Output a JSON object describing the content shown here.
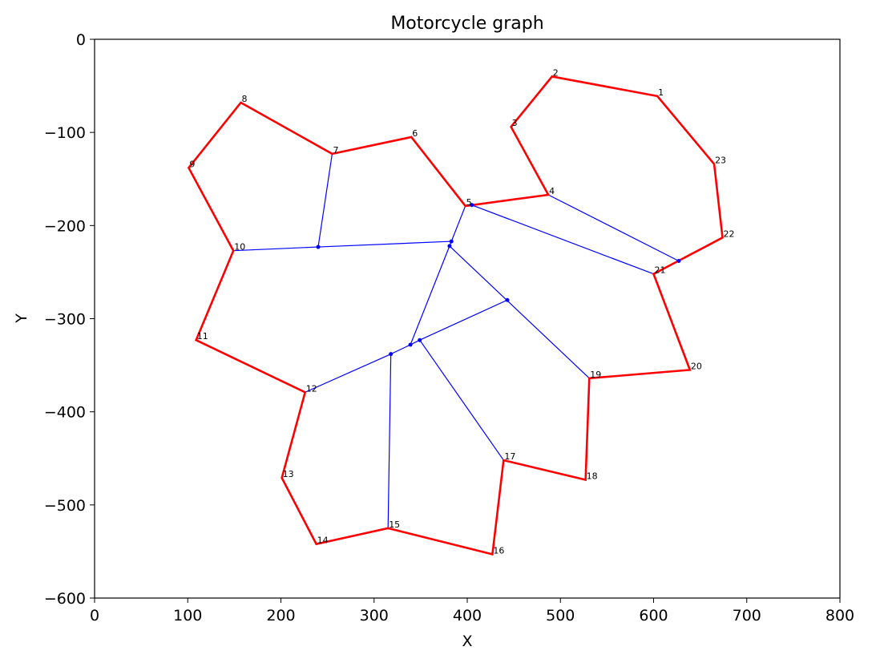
{
  "chart_data": {
    "type": "line",
    "title": "Motorcycle graph",
    "xlabel": "X",
    "ylabel": "Y",
    "xlim": [
      0,
      800
    ],
    "ylim": [
      -600,
      0
    ],
    "xticks": [
      0,
      100,
      200,
      300,
      400,
      500,
      600,
      700,
      800
    ],
    "yticks": [
      0,
      -100,
      -200,
      -300,
      -400,
      -500,
      -600
    ],
    "grid": false,
    "polygon_color": "#ff0000",
    "motorcycle_color": "#0000ff",
    "vertices": [
      {
        "label": "1",
        "x": 604,
        "y": -61
      },
      {
        "label": "2",
        "x": 491,
        "y": -40
      },
      {
        "label": "3",
        "x": 447,
        "y": -94
      },
      {
        "label": "4",
        "x": 487,
        "y": -167
      },
      {
        "label": "5",
        "x": 398,
        "y": -179
      },
      {
        "label": "6",
        "x": 340,
        "y": -105
      },
      {
        "label": "7",
        "x": 255,
        "y": -123
      },
      {
        "label": "8",
        "x": 157,
        "y": -68
      },
      {
        "label": "9",
        "x": 101,
        "y": -138
      },
      {
        "label": "10",
        "x": 149,
        "y": -227
      },
      {
        "label": "11",
        "x": 109,
        "y": -323
      },
      {
        "label": "12",
        "x": 226,
        "y": -379
      },
      {
        "label": "13",
        "x": 201,
        "y": -471
      },
      {
        "label": "14",
        "x": 238,
        "y": -542
      },
      {
        "label": "15",
        "x": 315,
        "y": -525
      },
      {
        "label": "16",
        "x": 427,
        "y": -553
      },
      {
        "label": "17",
        "x": 439,
        "y": -452
      },
      {
        "label": "18",
        "x": 527,
        "y": -473
      },
      {
        "label": "19",
        "x": 531,
        "y": -364
      },
      {
        "label": "20",
        "x": 639,
        "y": -355
      },
      {
        "label": "21",
        "x": 600,
        "y": -252
      },
      {
        "label": "22",
        "x": 674,
        "y": -213
      },
      {
        "label": "23",
        "x": 665,
        "y": -134
      }
    ],
    "motorcycle_points": [
      {
        "x": 405,
        "y": -178
      },
      {
        "x": 240,
        "y": -223
      },
      {
        "x": 383,
        "y": -217
      },
      {
        "x": 381,
        "y": -222
      },
      {
        "x": 627,
        "y": -238
      },
      {
        "x": 443,
        "y": -280
      },
      {
        "x": 318,
        "y": -338
      },
      {
        "x": 339,
        "y": -328
      },
      {
        "x": 349,
        "y": -323
      }
    ],
    "motorcycle_edges": [
      [
        [
          255,
          -123
        ],
        [
          240,
          -223
        ]
      ],
      [
        [
          149,
          -227
        ],
        [
          240,
          -223
        ]
      ],
      [
        [
          240,
          -223
        ],
        [
          383,
          -217
        ]
      ],
      [
        [
          398,
          -179
        ],
        [
          381,
          -222
        ]
      ],
      [
        [
          381,
          -222
        ],
        [
          339,
          -328
        ]
      ],
      [
        [
          381,
          -222
        ],
        [
          531,
          -364
        ]
      ],
      [
        [
          405,
          -178
        ],
        [
          600,
          -252
        ]
      ],
      [
        [
          487,
          -167
        ],
        [
          627,
          -238
        ]
      ],
      [
        [
          226,
          -379
        ],
        [
          318,
          -338
        ]
      ],
      [
        [
          318,
          -338
        ],
        [
          339,
          -328
        ]
      ],
      [
        [
          339,
          -328
        ],
        [
          349,
          -323
        ]
      ],
      [
        [
          349,
          -323
        ],
        [
          443,
          -280
        ]
      ],
      [
        [
          349,
          -323
        ],
        [
          439,
          -452
        ]
      ],
      [
        [
          318,
          -338
        ],
        [
          315,
          -525
        ]
      ]
    ]
  }
}
